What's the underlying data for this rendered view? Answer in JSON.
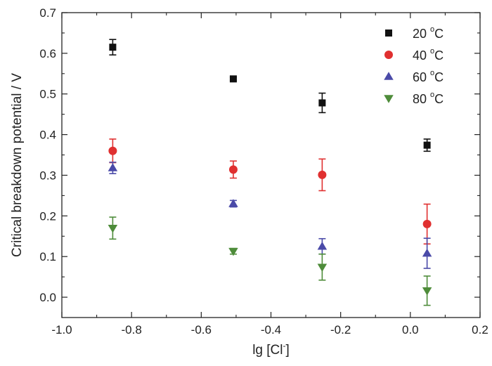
{
  "chart_data": {
    "type": "scatter",
    "title": "",
    "xlabel": "lg [Cl",
    "xlabel_superscript": "-",
    "xlabel_suffix": "]",
    "ylabel": "Critical breakdown potential / V",
    "xlim": [
      -1.0,
      0.2
    ],
    "ylim": [
      -0.05,
      0.7
    ],
    "xticks": [
      -1.0,
      -0.8,
      -0.6,
      -0.4,
      -0.2,
      0.0,
      0.2
    ],
    "xtick_labels": [
      "-1.0",
      "-0.8",
      "-0.6",
      "-0.4",
      "-0.2",
      "0.0",
      "0.2"
    ],
    "yticks": [
      0.0,
      0.1,
      0.2,
      0.3,
      0.4,
      0.5,
      0.6,
      0.7
    ],
    "ytick_labels": [
      "0.0",
      "0.1",
      "0.2",
      "0.3",
      "0.4",
      "0.5",
      "0.6",
      "0.7"
    ],
    "grid": false,
    "legend_position": "top-right",
    "x": [
      -0.854,
      -0.508,
      -0.253,
      0.048
    ],
    "series": [
      {
        "name": "20 °C",
        "label_main": "20 ",
        "label_sup": "o",
        "label_unit": "C",
        "marker": "square",
        "color": "#111111",
        "values": [
          0.615,
          0.537,
          0.478,
          0.374
        ],
        "errors": [
          0.019,
          0.004,
          0.024,
          0.015
        ]
      },
      {
        "name": "40 °C",
        "label_main": "40 ",
        "label_sup": "o",
        "label_unit": "C",
        "marker": "circle",
        "color": "#e03030",
        "values": [
          0.36,
          0.314,
          0.301,
          0.18
        ],
        "errors": [
          0.029,
          0.021,
          0.039,
          0.049
        ]
      },
      {
        "name": "60 °C",
        "label_main": "60 ",
        "label_sup": "o",
        "label_unit": "C",
        "marker": "triangle-up",
        "color": "#4a4aa8",
        "values": [
          0.318,
          0.23,
          0.125,
          0.108
        ],
        "errors": [
          0.014,
          0.008,
          0.019,
          0.037
        ]
      },
      {
        "name": "80 °C",
        "label_main": "80 ",
        "label_sup": "o",
        "label_unit": "C",
        "marker": "triangle-down",
        "color": "#4e8c3a",
        "values": [
          0.17,
          0.113,
          0.074,
          0.016
        ],
        "errors": [
          0.027,
          0.007,
          0.032,
          0.036
        ]
      }
    ]
  }
}
